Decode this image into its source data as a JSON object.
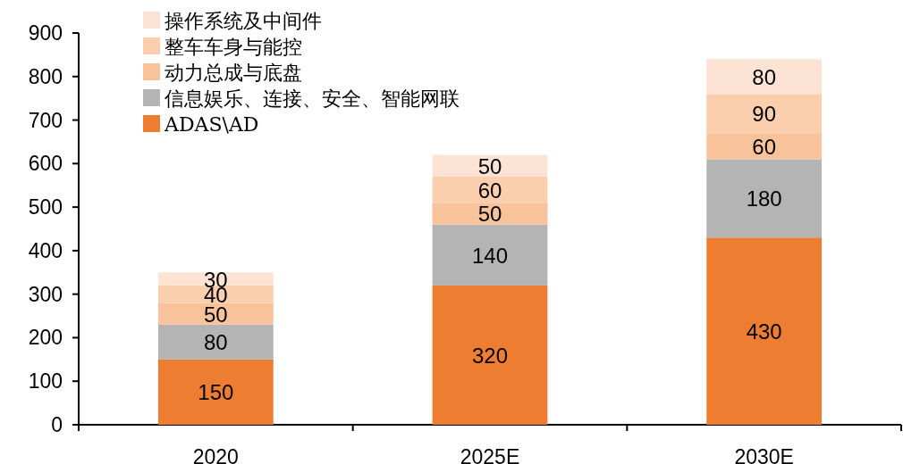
{
  "chart_data": {
    "type": "bar",
    "stacked": true,
    "data_labels": true,
    "legend": "top left",
    "categories": [
      "2020",
      "2025E",
      "2030E"
    ],
    "series": [
      {
        "name": "ADAS\\AD",
        "color": "#ed7d31",
        "values": [
          150,
          320,
          430
        ]
      },
      {
        "name": "信息娱乐、连接、安全、智能网联",
        "color": "#b4b4b4",
        "values": [
          80,
          140,
          180
        ]
      },
      {
        "name": "动力总成与底盘",
        "color": "#f8c29b",
        "values": [
          50,
          50,
          60
        ]
      },
      {
        "name": "整车车身与能控",
        "color": "#fbcfae",
        "values": [
          40,
          60,
          90
        ]
      },
      {
        "name": "操作系统及中间件",
        "color": "#fde3d4",
        "values": [
          30,
          50,
          80
        ]
      }
    ],
    "ylim": [
      0,
      900
    ],
    "yticks": [
      0,
      100,
      200,
      300,
      400,
      500,
      600,
      700,
      800,
      900
    ]
  }
}
